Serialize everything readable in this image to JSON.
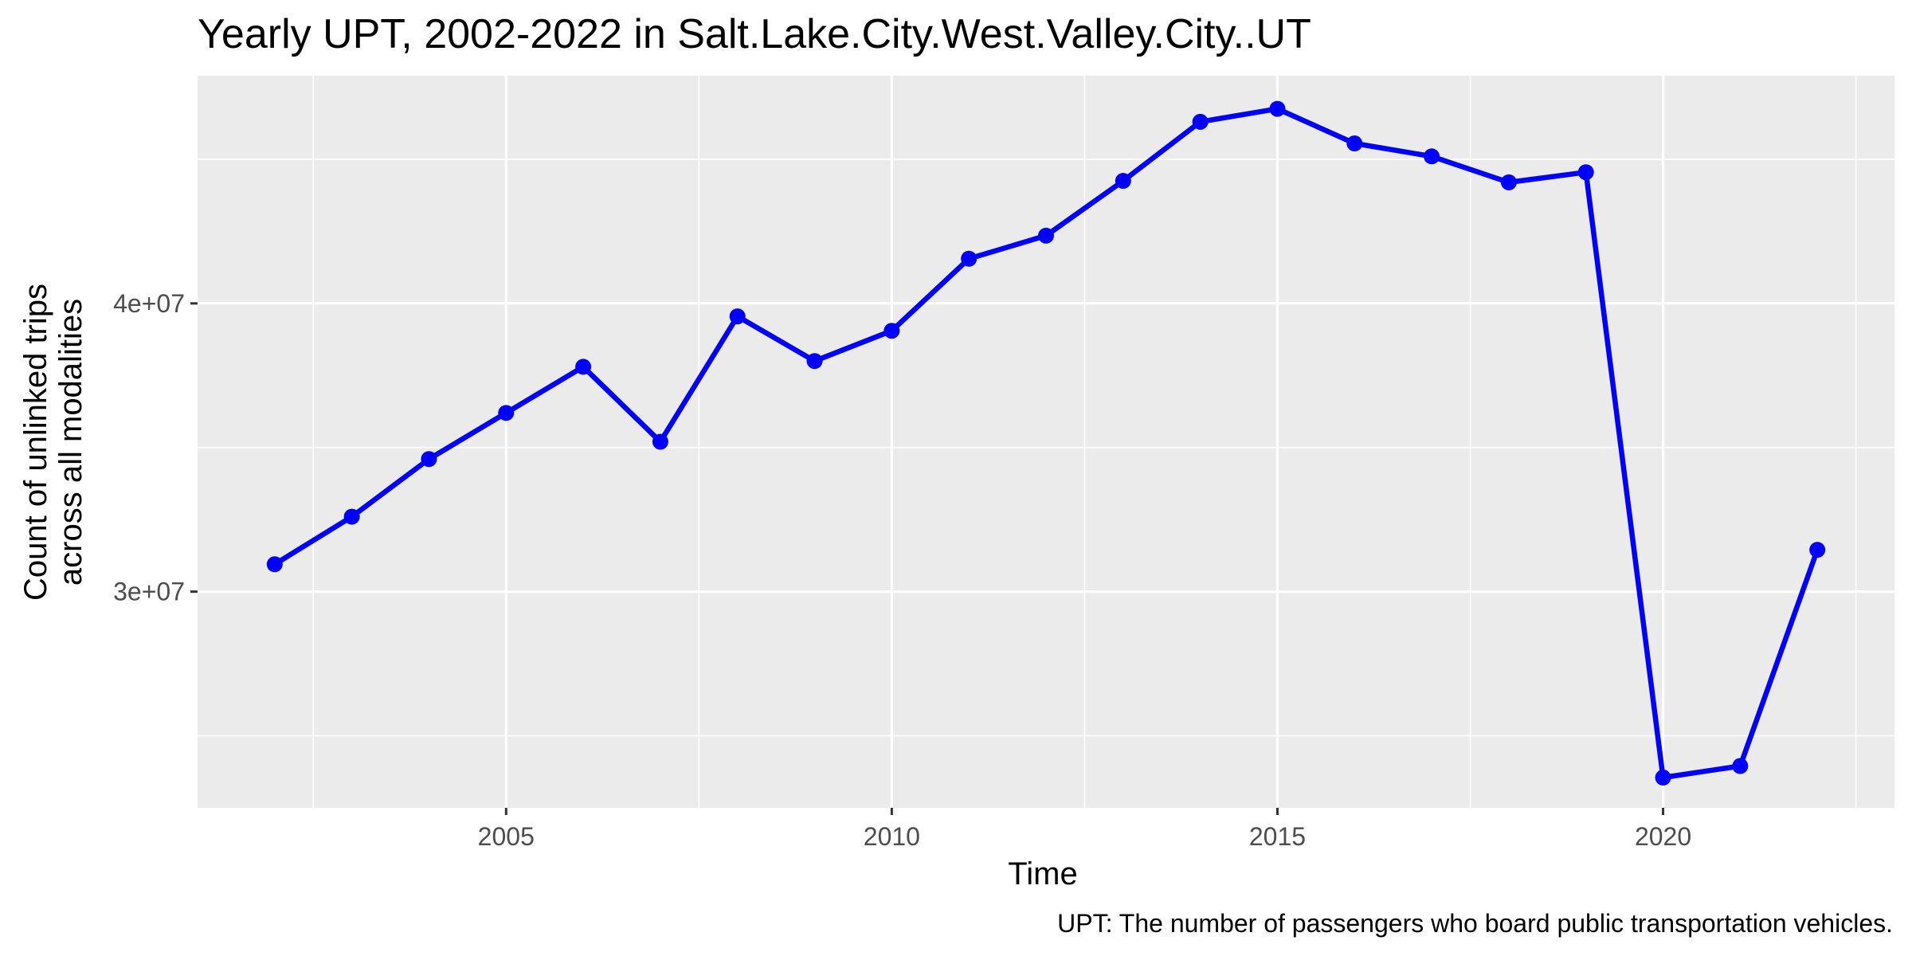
{
  "chart_data": {
    "type": "line",
    "title": "Yearly UPT, 2002-2022 in Salt.Lake.City.West.Valley.City..UT",
    "xlabel": "Time",
    "ylabel": [
      "Count of unlinked trips",
      "across all modalities"
    ],
    "caption": "UPT: The number of passengers who board public transportation vehicles.",
    "xlim": [
      2001,
      2023
    ],
    "ylim": [
      22500000,
      47900000
    ],
    "x_ticks": [
      2005,
      2010,
      2015,
      2020
    ],
    "x_tick_labels": [
      "2005",
      "2010",
      "2015",
      "2020"
    ],
    "x_minor_ticks": [
      2002.5,
      2007.5,
      2012.5,
      2017.5,
      2022.5
    ],
    "y_ticks": [
      30000000,
      40000000
    ],
    "y_tick_labels": [
      "3e+07",
      "4e+07"
    ],
    "y_minor_ticks": [
      25000000,
      35000000,
      45000000
    ],
    "grid": true,
    "series": [
      {
        "color": "#0000ff",
        "x": [
          2002,
          2003,
          2004,
          2005,
          2006,
          2007,
          2008,
          2009,
          2010,
          2011,
          2012,
          2013,
          2014,
          2015,
          2016,
          2017,
          2018,
          2019,
          2020,
          2021,
          2022
        ],
        "y": [
          30950000,
          32600000,
          34600000,
          36200000,
          37800000,
          35200000,
          39550000,
          38000000,
          39050000,
          41550000,
          42350000,
          44250000,
          46300000,
          46750000,
          45550000,
          45100000,
          44200000,
          44550000,
          23550000,
          23950000,
          31450000
        ]
      }
    ]
  },
  "colors": {
    "panel": "#ebebeb",
    "grid": "#ffffff",
    "series": "#0000ff"
  }
}
